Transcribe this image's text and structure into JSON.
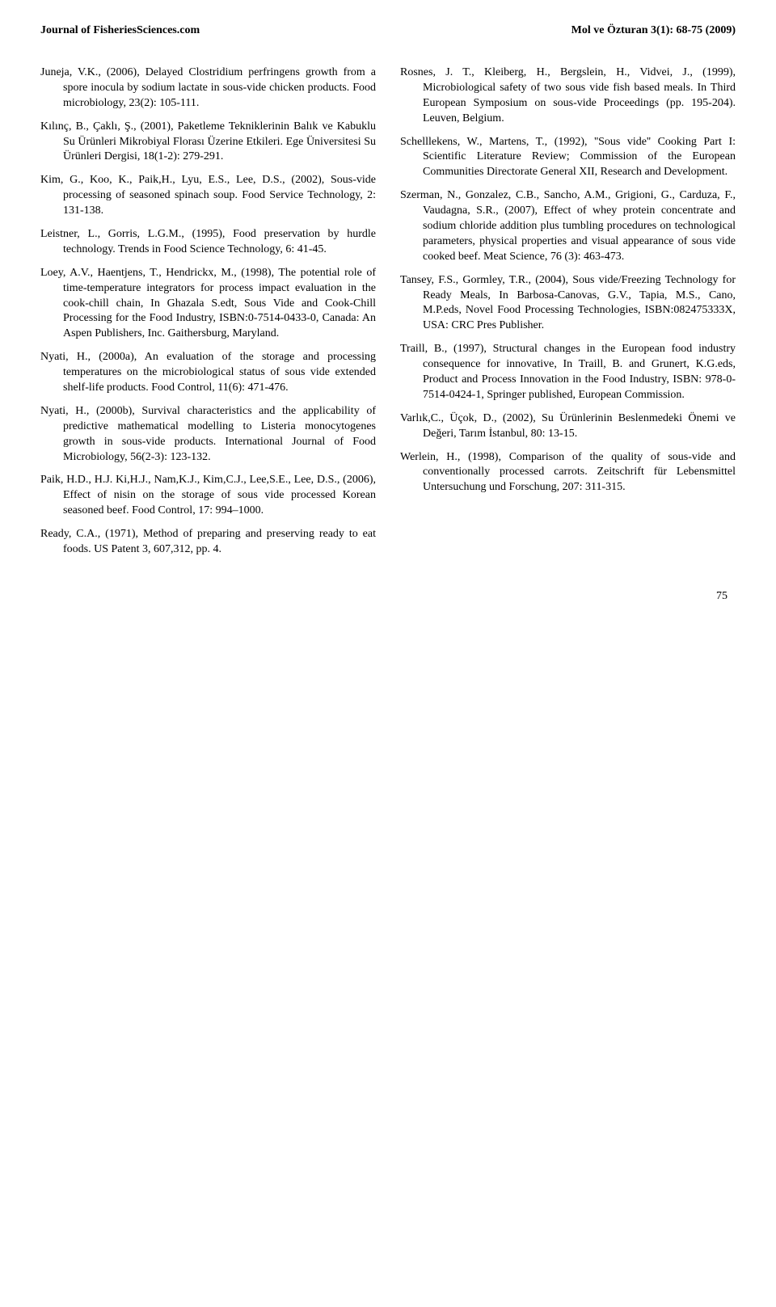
{
  "header": {
    "left": "Journal of FisheriesSciences.com",
    "right": "Mol ve Özturan 3(1): 68-75 (2009)"
  },
  "references_left": [
    "Juneja, V.K., (2006), Delayed Clostridium perfringens growth from a spore inocula by sodium lactate in sous-vide chicken products. Food microbiology, 23(2): 105-111.",
    "Kılınç, B., Çaklı, Ş., (2001), Paketleme Tekniklerinin Balık ve Kabuklu Su Ürünleri Mikrobiyal Florası Üzerine Etkileri. Ege Üniversitesi Su Ürünleri Dergisi, 18(1-2): 279-291.",
    "Kim, G., Koo, K., Paik,H., Lyu, E.S., Lee, D.S., (2002), Sous-vide processing of seasoned spinach soup. Food Service Technology, 2: 131-138.",
    "Leistner, L., Gorris, L.G.M., (1995), Food preservation by hurdle technology. Trends in Food Science Technology, 6: 41-45.",
    "Loey, A.V., Haentjens, T., Hendrickx, M., (1998), The potential role of time-temperature integrators for process impact evaluation in the cook-chill chain, In Ghazala S.edt, Sous Vide and Cook-Chill Processing for the Food Industry, ISBN:0-7514-0433-0, Canada: An Aspen Publishers, Inc. Gaithersburg, Maryland.",
    "Nyati, H., (2000a), An evaluation of the storage and processing temperatures on the microbiological status of sous vide extended shelf-life products. Food Control, 11(6): 471-476.",
    "Nyati, H., (2000b), Survival characteristics and the applicability of predictive mathematical modelling to Listeria monocytogenes growth in sous-vide products. International Journal of Food Microbiology, 56(2-3): 123-132.",
    "Paik, H.D., H.J. Ki,H.J., Nam,K.J., Kim,C.J., Lee,S.E., Lee, D.S., (2006), Effect of nisin on the storage of sous vide processed Korean seasoned beef. Food Control, 17: 994–1000.",
    "Ready, C.A., (1971), Method of preparing and preserving ready to eat foods. US Patent 3, 607,312, pp. 4."
  ],
  "references_right": [
    "Rosnes, J. T., Kleiberg, H., Bergslein, H., Vidvei, J., (1999), Microbiological safety of two sous vide fish based meals. In Third European Symposium on sous-vide Proceedings (pp. 195-204). Leuven, Belgium.",
    "Schelllekens, W., Martens, T., (1992), ''Sous vide'' Cooking Part I: Scientific Literature Review; Commission of the European Communities Directorate General XII, Research and Development.",
    "Szerman, N., Gonzalez, C.B., Sancho, A.M., Grigioni, G., Carduza, F., Vaudagna, S.R., (2007), Effect of whey protein concentrate and sodium chloride addition plus tumbling procedures on technological parameters, physical properties and visual appearance of sous vide cooked beef. Meat Science, 76 (3): 463-473.",
    "Tansey, F.S., Gormley, T.R., (2004), Sous vide/Freezing Technology for Ready Meals, In Barbosa-Canovas, G.V., Tapia, M.S., Cano, M.P.eds, Novel Food Processing Technologies, ISBN:082475333X, USA: CRC Pres Publisher.",
    "Traill, B., (1997), Structural changes in the European food industry consequence for innovative, In Traill, B. and Grunert, K.G.eds, Product and Process Innovation in the Food Industry, ISBN: 978-0-7514-0424-1, Springer published, European Commission.",
    "Varlık,C., Üçok, D., (2002), Su Ürünlerinin Beslenmedeki Önemi ve Değeri, Tarım İstanbul, 80: 13-15.",
    "Werlein, H., (1998), Comparison of the quality of sous-vide and conventionally processed carrots. Zeitschrift für Lebensmittel Untersuchung und Forschung, 207: 311-315."
  ],
  "page_number": "75"
}
